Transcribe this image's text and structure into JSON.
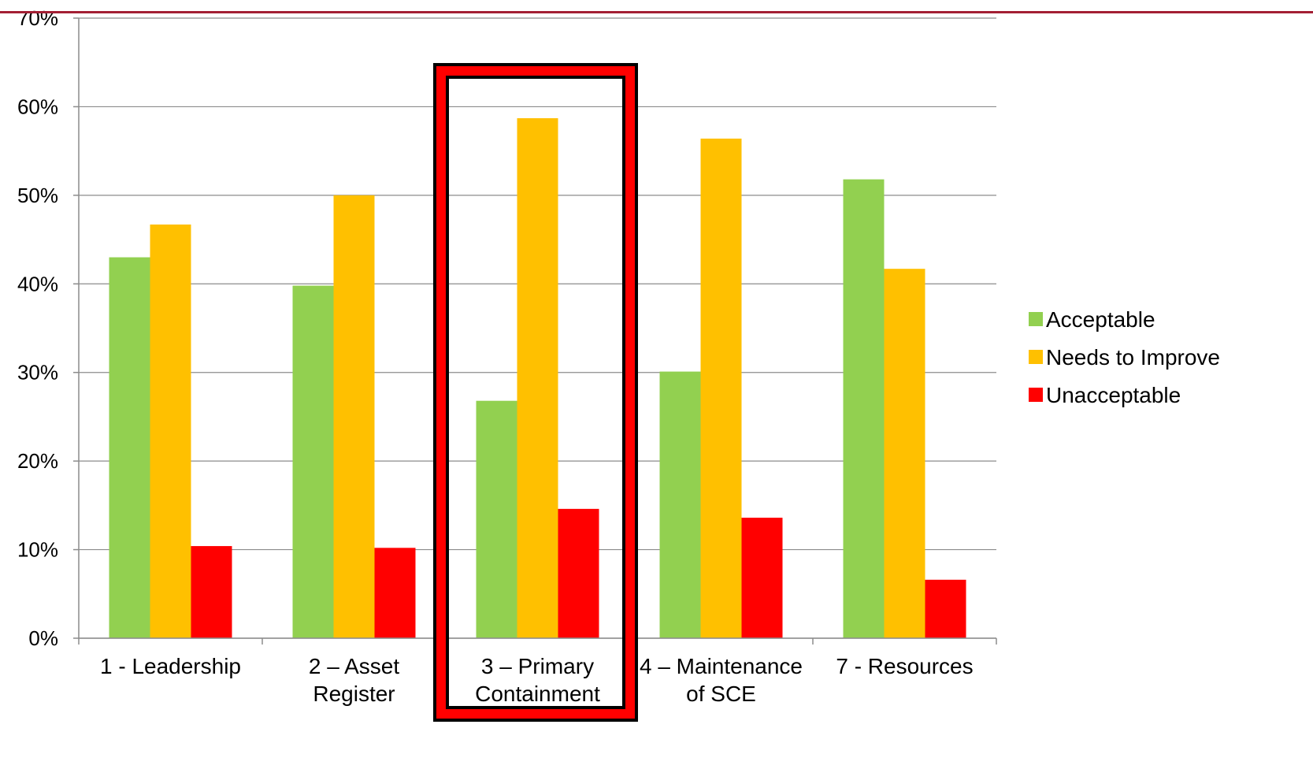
{
  "chart_data": {
    "type": "bar",
    "title": "",
    "xlabel": "",
    "ylabel": "",
    "ylim": [
      0,
      0.7
    ],
    "yticks": [
      "0%",
      "10%",
      "20%",
      "30%",
      "40%",
      "50%",
      "60%",
      "70%"
    ],
    "categories": [
      [
        "1  - Leadership"
      ],
      [
        "2 – Asset",
        "Register"
      ],
      [
        "3 – Primary",
        "Containment"
      ],
      [
        "4 – Maintenance",
        "of SCE"
      ],
      [
        "7 - Resources"
      ]
    ],
    "series": [
      {
        "name": "Acceptable",
        "color": "#92d050",
        "values": [
          0.43,
          0.398,
          0.268,
          0.301,
          0.518
        ]
      },
      {
        "name": "Needs to Improve",
        "color": "#ffc000",
        "values": [
          0.467,
          0.5,
          0.587,
          0.564,
          0.417
        ]
      },
      {
        "name": "Unacceptable",
        "color": "#ff0000",
        "values": [
          0.104,
          0.102,
          0.146,
          0.136,
          0.066
        ]
      }
    ],
    "grid": true,
    "legend_position": "right",
    "highlighted_category_index": 2,
    "accent_line_color": "#a31f34",
    "highlight_box_colors": {
      "outer": "#000000",
      "fill": "#ff0000"
    }
  }
}
